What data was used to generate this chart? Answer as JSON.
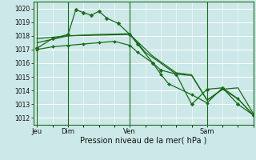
{
  "bg_color": "#cce8e8",
  "grid_color": "#ffffff",
  "line_color": "#1a6b1a",
  "marker_color": "#1a6b1a",
  "xlabel": "Pression niveau de la mer( hPa )",
  "ylim": [
    1011.5,
    1020.5
  ],
  "yticks": [
    1012,
    1013,
    1014,
    1015,
    1016,
    1017,
    1018,
    1019,
    1020
  ],
  "day_labels": [
    "Jeu",
    "Dim",
    "Ven",
    "Sam"
  ],
  "day_positions": [
    0.0,
    8.0,
    24.0,
    44.0
  ],
  "xlim": [
    -1,
    56
  ],
  "series1_x": [
    0,
    4,
    8,
    10,
    12,
    14,
    16,
    18,
    21,
    24,
    26,
    30,
    32,
    36,
    40,
    44,
    48,
    52,
    56
  ],
  "series1_y": [
    1017.1,
    1017.8,
    1018.1,
    1019.9,
    1019.7,
    1019.5,
    1019.8,
    1019.3,
    1018.9,
    1018.1,
    1017.4,
    1016.0,
    1015.5,
    1015.2,
    1013.0,
    1014.1,
    1014.2,
    1013.0,
    1012.2
  ],
  "series2_x": [
    0,
    8,
    16,
    24,
    30,
    36,
    40,
    44,
    48,
    52,
    56
  ],
  "series2_y": [
    1017.8,
    1018.0,
    1018.05,
    1018.1,
    1016.5,
    1015.3,
    1015.15,
    1013.3,
    1014.1,
    1014.2,
    1012.3
  ],
  "series3_x": [
    0,
    8,
    16,
    24,
    28,
    32,
    36,
    40,
    44,
    48,
    52,
    56
  ],
  "series3_y": [
    1017.5,
    1018.0,
    1018.1,
    1018.15,
    1016.8,
    1016.0,
    1015.2,
    1015.1,
    1013.3,
    1014.1,
    1013.4,
    1012.2
  ],
  "series4_x": [
    0,
    4,
    8,
    12,
    16,
    20,
    24,
    26,
    30,
    32,
    34,
    40,
    44,
    48,
    52,
    56
  ],
  "series4_y": [
    1017.0,
    1017.2,
    1017.3,
    1017.4,
    1017.5,
    1017.6,
    1017.3,
    1016.8,
    1016.0,
    1015.2,
    1014.5,
    1013.7,
    1013.1,
    1014.2,
    1013.4,
    1012.2
  ]
}
